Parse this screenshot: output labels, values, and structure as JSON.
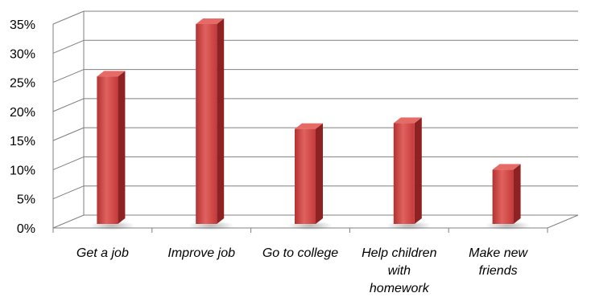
{
  "chart_data": {
    "type": "bar",
    "categories": [
      [
        "Get a job"
      ],
      [
        "Improve job"
      ],
      [
        "Go to college"
      ],
      [
        "Help children",
        "with",
        "homework"
      ],
      [
        "Make new",
        "friends"
      ]
    ],
    "values": [
      26,
      35,
      17,
      18,
      10
    ],
    "yticks": [
      "0%",
      "5%",
      "10%",
      "15%",
      "20%",
      "25%",
      "30%",
      "35%"
    ],
    "ylim": [
      0,
      35
    ],
    "grid": true,
    "bar_color": "#c43a3a",
    "bar_highlight": "#e66a66",
    "bar_side_color": "#8e2222",
    "grid_color": "#7f7f7f"
  }
}
